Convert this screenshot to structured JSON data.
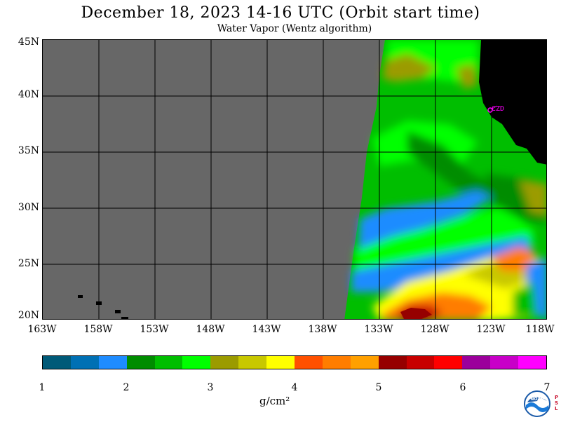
{
  "header": {
    "title": "December 18, 2023  14-16 UTC  (Orbit start time)",
    "subtitle": "Water Vapor (Wentz algorithm)"
  },
  "map": {
    "lat_labels": [
      "45N",
      "40N",
      "35N",
      "30N",
      "25N",
      "20N"
    ],
    "lon_labels": [
      "163W",
      "158W",
      "153W",
      "148W",
      "143W",
      "138W",
      "133W",
      "128W",
      "123W",
      "118W"
    ],
    "station_label": "CZD",
    "colors": {
      "nodata": "#676767",
      "land": "#000000",
      "grid": "#000000",
      "station": "#ff00ff"
    }
  },
  "colorbar": {
    "tick_labels": [
      "1",
      "2",
      "3",
      "4",
      "5",
      "6",
      "7"
    ],
    "unit": "g/cm²",
    "colors": [
      "#005a78",
      "#0070b4",
      "#1e8cff",
      "#008c00",
      "#00be00",
      "#00ff00",
      "#9b9b00",
      "#c8c800",
      "#ffff00",
      "#ff5000",
      "#ff7d00",
      "#ffa000",
      "#960000",
      "#c80000",
      "#ff0000",
      "#9b009b",
      "#c800c8",
      "#ff00ff"
    ]
  },
  "logo": {
    "name": "NOAA",
    "side_text": "PSL"
  }
}
